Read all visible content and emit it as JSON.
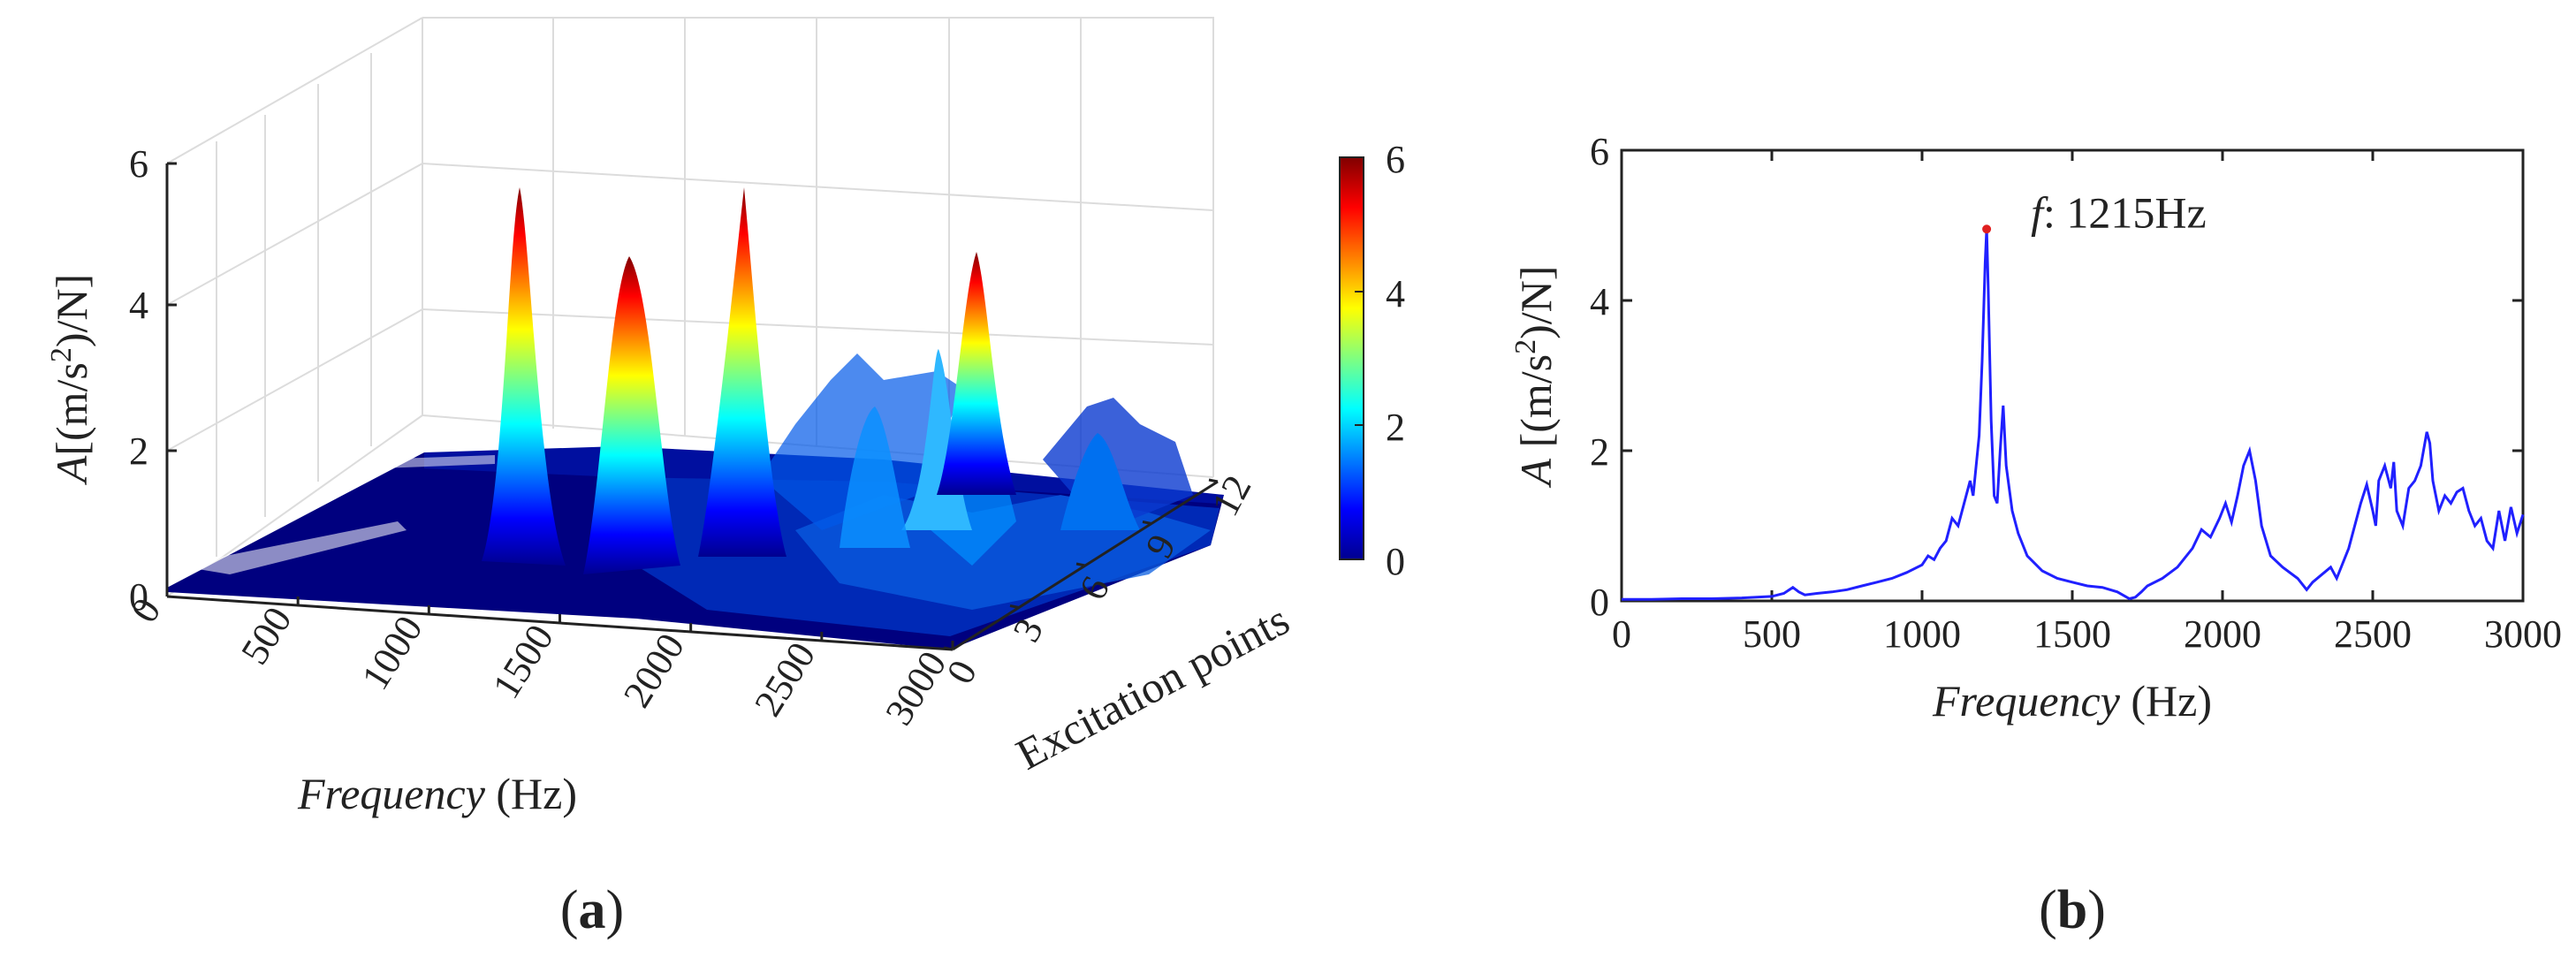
{
  "panels": {
    "a": {
      "label_open": "(",
      "label_letter": "a",
      "label_close": ")"
    },
    "b": {
      "label_open": "(",
      "label_letter": "b",
      "label_close": ")"
    }
  },
  "colors": {
    "line": "#2020ff",
    "peak_marker": "#e02020",
    "axis": "#222222",
    "grid": "#dcdcdc"
  },
  "chart_data": [
    {
      "type": "surface3d",
      "panel": "a",
      "colormap": "jet",
      "x_axis": {
        "quantity": "Frequency",
        "unit": "(Hz)",
        "range": [
          0,
          3000
        ],
        "ticks": [
          "0",
          "500",
          "1000",
          "1500",
          "2000",
          "2500",
          "3000"
        ]
      },
      "y_axis": {
        "label": "Excitation points",
        "range": [
          0,
          12
        ],
        "ticks": [
          "0",
          "3",
          "6",
          "9",
          "12"
        ]
      },
      "z_axis": {
        "symbol": "A",
        "unit_pre": "[(m/s",
        "unit_sup": "2",
        "unit_post": ")/N]",
        "range": [
          0,
          6
        ],
        "ticks": [
          "0",
          "2",
          "4",
          "6"
        ]
      },
      "colorbar": {
        "range": [
          0,
          6
        ],
        "ticks": [
          "0",
          "2",
          "4",
          "6"
        ]
      },
      "grid": true,
      "peaks": [
        {
          "frequency": 1215,
          "excitation_point": 0,
          "amplitude": 5.6
        },
        {
          "frequency": 1400,
          "excitation_point": 3,
          "amplitude": 4.6
        },
        {
          "frequency": 1700,
          "excitation_point": 6,
          "amplitude": 5.8
        },
        {
          "frequency": 2200,
          "excitation_point": 9,
          "amplitude": 2.1
        },
        {
          "frequency": 2500,
          "excitation_point": 8,
          "amplitude": 4.3
        },
        {
          "frequency": 2650,
          "excitation_point": 11,
          "amplitude": 1.8
        }
      ]
    },
    {
      "type": "line",
      "panel": "b",
      "x_axis": {
        "quantity": "Frequency",
        "unit": "(Hz)",
        "range": [
          0,
          3000
        ],
        "ticks": [
          "0",
          "500",
          "1000",
          "1500",
          "2000",
          "2500",
          "3000"
        ]
      },
      "y_axis": {
        "symbol": "A",
        "unit_pre": " [(m/s",
        "unit_sup": "2",
        "unit_post": ")/N]",
        "range": [
          0,
          6
        ],
        "ticks": [
          "0",
          "2",
          "4",
          "6"
        ]
      },
      "annotation": {
        "symbol": "f",
        "text": ": 1215Hz",
        "frequency": 1215,
        "amplitude": 4.95
      },
      "grid": false,
      "series": [
        {
          "x": [
            0,
            100,
            200,
            300,
            400,
            500,
            540,
            570,
            590,
            610,
            650,
            700,
            750,
            800,
            850,
            900,
            950,
            1000,
            1020,
            1040,
            1060,
            1080,
            1100,
            1120,
            1140,
            1160,
            1170,
            1180,
            1190,
            1200,
            1210,
            1215,
            1220,
            1230,
            1240,
            1250,
            1260,
            1270,
            1280,
            1300,
            1320,
            1350,
            1400,
            1450,
            1500,
            1550,
            1600,
            1650,
            1690,
            1710,
            1730,
            1750,
            1800,
            1850,
            1900,
            1930,
            1960,
            1990,
            2010,
            2030,
            2050,
            2070,
            2090,
            2110,
            2130,
            2160,
            2200,
            2250,
            2280,
            2300,
            2330,
            2360,
            2380,
            2400,
            2420,
            2440,
            2460,
            2480,
            2500,
            2510,
            2520,
            2540,
            2560,
            2570,
            2580,
            2600,
            2620,
            2640,
            2660,
            2680,
            2690,
            2700,
            2720,
            2740,
            2760,
            2780,
            2800,
            2820,
            2840,
            2860,
            2880,
            2900,
            2920,
            2940,
            2960,
            2980,
            3000
          ],
          "y": [
            0.02,
            0.02,
            0.03,
            0.03,
            0.04,
            0.06,
            0.1,
            0.18,
            0.12,
            0.08,
            0.1,
            0.12,
            0.15,
            0.2,
            0.25,
            0.3,
            0.38,
            0.48,
            0.6,
            0.55,
            0.7,
            0.8,
            1.1,
            1.0,
            1.3,
            1.6,
            1.4,
            1.8,
            2.2,
            3.2,
            4.5,
            4.95,
            4.2,
            2.4,
            1.4,
            1.3,
            2.0,
            2.6,
            1.8,
            1.2,
            0.9,
            0.6,
            0.4,
            0.3,
            0.25,
            0.2,
            0.18,
            0.12,
            0.03,
            0.05,
            0.12,
            0.2,
            0.3,
            0.45,
            0.7,
            0.95,
            0.85,
            1.1,
            1.3,
            1.05,
            1.4,
            1.8,
            2.0,
            1.6,
            1.0,
            0.6,
            0.45,
            0.3,
            0.15,
            0.25,
            0.35,
            0.45,
            0.3,
            0.5,
            0.7,
            1.0,
            1.3,
            1.55,
            1.2,
            1.0,
            1.6,
            1.8,
            1.5,
            1.85,
            1.2,
            1.0,
            1.5,
            1.6,
            1.8,
            2.25,
            2.1,
            1.6,
            1.2,
            1.4,
            1.3,
            1.45,
            1.5,
            1.2,
            1.0,
            1.1,
            0.8,
            0.7,
            1.2,
            0.8,
            1.25,
            0.9,
            1.15
          ]
        }
      ]
    }
  ]
}
